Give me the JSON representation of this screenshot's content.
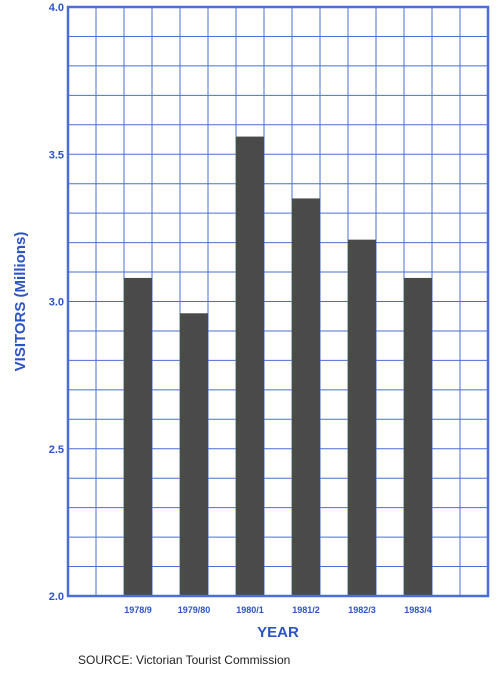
{
  "chart_data": {
    "type": "bar",
    "title": "",
    "xlabel": "YEAR",
    "ylabel": "VISITORS (Millions)",
    "categories": [
      "1978/9",
      "1979/80",
      "1980/1",
      "1981/2",
      "1982/3",
      "1983/4"
    ],
    "values": [
      3.08,
      2.96,
      3.56,
      3.35,
      3.21,
      3.08
    ],
    "ylim": [
      2.0,
      4.0
    ],
    "yticks": [
      "2.0",
      "2.5",
      "3.0",
      "3.5",
      "4.0"
    ],
    "grid": true,
    "legend": "none",
    "colors": {
      "bar": "#4a4a4a",
      "grid": "#4a6ed4",
      "axis_text": "#2c54c8"
    }
  },
  "source": {
    "label": "SOURCE:",
    "text": "Victorian Tourist Commission"
  }
}
